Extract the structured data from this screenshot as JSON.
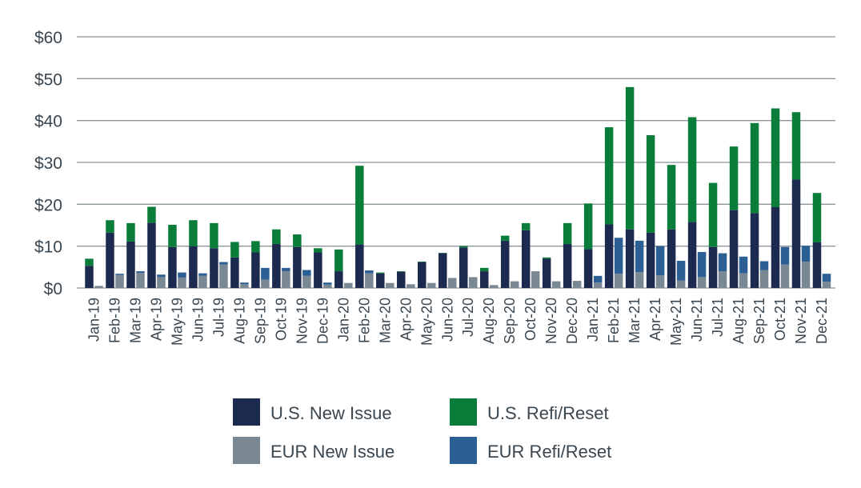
{
  "chart_data": {
    "type": "bar",
    "stacked": true,
    "title": "",
    "xlabel": "",
    "ylabel": "",
    "ylim": [
      0,
      60
    ],
    "y_ticks": [
      "$0",
      "$10",
      "$20",
      "$30",
      "$40",
      "$50",
      "$60"
    ],
    "grid": "horizontal",
    "legend_position": "bottom",
    "months": [
      "Jan-19",
      "Feb-19",
      "Mar-19",
      "Apr-19",
      "May-19",
      "Jun-19",
      "Jul-19",
      "Aug-19",
      "Sep-19",
      "Oct-19",
      "Nov-19",
      "Dec-19",
      "Jan-20",
      "Feb-20",
      "Mar-20",
      "Apr-20",
      "May-20",
      "Jun-20",
      "Jul-20",
      "Aug-20",
      "Sep-20",
      "Oct-20",
      "Nov-20",
      "Dec-20",
      "Jan-21",
      "Feb-21",
      "Mar-21",
      "Apr-21",
      "May-21",
      "Jun-21",
      "Jul-21",
      "Aug-21",
      "Sep-21",
      "Oct-21",
      "Nov-21",
      "Dec-21"
    ],
    "us_series": [
      {
        "name": "U.S. New Issue",
        "color": "#1b2a4e",
        "values": [
          5.3,
          13.2,
          11.1,
          15.6,
          9.8,
          10.0,
          9.5,
          7.3,
          8.5,
          10.5,
          9.8,
          8.5,
          4.0,
          10.4,
          3.5,
          3.9,
          6.2,
          8.3,
          9.7,
          4.0,
          11.3,
          13.8,
          7.0,
          10.5,
          9.3,
          15.2,
          14.0,
          13.2,
          14.0,
          15.8,
          9.8,
          18.6,
          17.9,
          19.3,
          25.9,
          10.9
        ]
      },
      {
        "name": "U.S. Refi/Reset",
        "color": "#0b7d3a",
        "values": [
          1.7,
          3.0,
          4.4,
          3.8,
          5.3,
          6.2,
          6.0,
          3.7,
          2.7,
          3.5,
          3.0,
          1.0,
          5.2,
          18.8,
          0.2,
          0.1,
          0.1,
          0.1,
          0.3,
          0.8,
          1.2,
          1.7,
          0.3,
          5.0,
          10.9,
          23.2,
          34.0,
          23.3,
          15.4,
          25.0,
          15.3,
          15.2,
          21.5,
          23.6,
          16.1,
          11.8
        ]
      }
    ],
    "eur_series": [
      {
        "name": "EUR New Issue",
        "color": "#7a8893",
        "values": [
          0.5,
          3.1,
          3.6,
          2.6,
          2.5,
          2.9,
          5.6,
          0.9,
          2.0,
          4.0,
          2.9,
          0.8,
          1.2,
          3.5,
          1.2,
          0.9,
          1.2,
          2.4,
          2.6,
          0.7,
          1.6,
          4.0,
          1.6,
          1.7,
          1.3,
          3.4,
          3.8,
          3.0,
          1.8,
          2.6,
          4.0,
          3.5,
          4.3,
          5.6,
          6.3,
          1.5
        ]
      },
      {
        "name": "EUR Refi/Reset",
        "color": "#2c5f93",
        "values": [
          0.0,
          0.3,
          0.4,
          0.6,
          1.2,
          0.6,
          0.6,
          0.4,
          2.8,
          0.8,
          1.4,
          0.5,
          0.0,
          0.7,
          0.0,
          0.0,
          0.0,
          0.0,
          0.0,
          0.0,
          0.0,
          0.0,
          0.0,
          0.0,
          1.6,
          8.6,
          7.5,
          7.0,
          4.7,
          6.0,
          4.3,
          4.0,
          2.1,
          4.2,
          3.8,
          1.9
        ]
      }
    ]
  },
  "legend": [
    {
      "label": "U.S. New Issue",
      "color": "#1b2a4e"
    },
    {
      "label": "U.S. Refi/Reset",
      "color": "#0b7d3a"
    },
    {
      "label": "EUR New Issue",
      "color": "#7a8893"
    },
    {
      "label": "EUR Refi/Reset",
      "color": "#2c5f93"
    }
  ]
}
